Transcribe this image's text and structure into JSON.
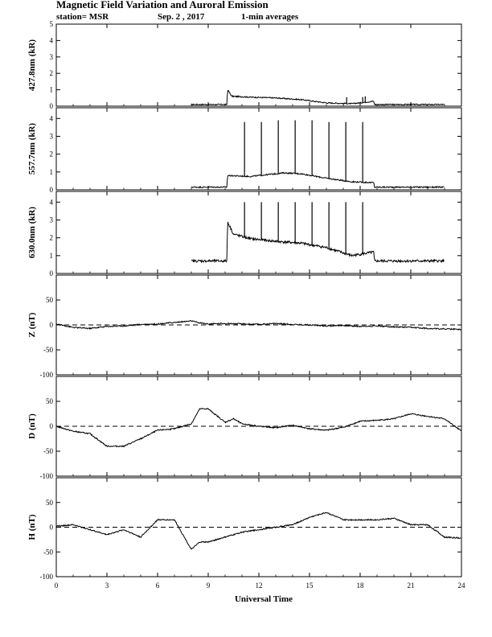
{
  "title": "Magnetic Field Variation and Auroral Emission",
  "subtitle": {
    "station": "station= MSR",
    "date": "Sep. 2  , 2017",
    "averaging": "1-min averages"
  },
  "colors": {
    "line": "#000000",
    "background": "#ffffff"
  },
  "chart_data": [
    {
      "id": "e4278",
      "type": "line",
      "ylabel": "427.8nm (kR)",
      "ylim": [
        0,
        5
      ],
      "yticks": [
        0,
        1,
        2,
        3,
        4,
        5
      ],
      "xlim": [
        0,
        24
      ],
      "valid_range": [
        8.0,
        23.0
      ],
      "gap_range": [
        18.8,
        23.0
      ],
      "base_level": 0.1,
      "knots": [
        [
          8.0,
          0.1
        ],
        [
          10.1,
          0.1
        ],
        [
          10.15,
          1.0
        ],
        [
          10.4,
          0.6
        ],
        [
          11.5,
          0.55
        ],
        [
          13.0,
          0.5
        ],
        [
          14.5,
          0.4
        ],
        [
          16.0,
          0.2
        ],
        [
          17.5,
          0.15
        ],
        [
          18.8,
          0.3
        ],
        [
          18.85,
          0.1
        ],
        [
          23.0,
          0.1
        ]
      ],
      "spikes": [
        [
          17.2,
          0.55
        ],
        [
          18.15,
          0.55
        ],
        [
          18.3,
          0.6
        ]
      ],
      "zero_line": false
    },
    {
      "id": "e5577",
      "type": "line",
      "ylabel": "557.7nm (kR)",
      "ylim": [
        0,
        4.6
      ],
      "yticks": [
        0,
        1,
        2,
        3,
        4
      ],
      "xlim": [
        0,
        24
      ],
      "valid_range": [
        8.0,
        23.0
      ],
      "knots": [
        [
          8.0,
          0.15
        ],
        [
          10.1,
          0.15
        ],
        [
          10.15,
          0.8
        ],
        [
          11.5,
          0.75
        ],
        [
          13.5,
          0.95
        ],
        [
          14.5,
          0.9
        ],
        [
          16.0,
          0.65
        ],
        [
          17.5,
          0.45
        ],
        [
          18.8,
          0.4
        ],
        [
          18.85,
          0.15
        ],
        [
          23.0,
          0.15
        ]
      ],
      "spikes": [
        [
          11.15,
          3.8
        ],
        [
          12.15,
          3.8
        ],
        [
          13.15,
          3.9
        ],
        [
          14.15,
          3.9
        ],
        [
          15.15,
          3.9
        ],
        [
          16.15,
          3.8
        ],
        [
          17.15,
          3.8
        ],
        [
          18.15,
          3.8
        ]
      ],
      "zero_line": false
    },
    {
      "id": "e6300",
      "type": "line",
      "ylabel": "630.0nm (kR)",
      "ylim": [
        0,
        4.6
      ],
      "yticks": [
        0,
        1,
        2,
        3,
        4
      ],
      "xlim": [
        0,
        24
      ],
      "valid_range": [
        8.0,
        23.0
      ],
      "knots": [
        [
          8.0,
          0.7
        ],
        [
          10.1,
          0.7
        ],
        [
          10.15,
          2.9
        ],
        [
          10.5,
          2.2
        ],
        [
          11.5,
          1.95
        ],
        [
          13.0,
          1.8
        ],
        [
          14.5,
          1.7
        ],
        [
          16.0,
          1.45
        ],
        [
          17.5,
          1.0
        ],
        [
          18.8,
          1.2
        ],
        [
          18.85,
          0.7
        ],
        [
          23.0,
          0.7
        ]
      ],
      "spikes": [
        [
          11.15,
          4.0
        ],
        [
          12.15,
          4.0
        ],
        [
          13.15,
          4.0
        ],
        [
          14.15,
          4.0
        ],
        [
          15.15,
          4.0
        ],
        [
          16.15,
          4.0
        ],
        [
          17.15,
          4.0
        ],
        [
          18.15,
          4.0
        ]
      ],
      "zero_line": false
    },
    {
      "id": "z",
      "type": "line",
      "ylabel": "Z (nT)",
      "ylim": [
        -100,
        100
      ],
      "yticks": [
        -100,
        -50,
        0,
        50
      ],
      "xlim": [
        0,
        24
      ],
      "valid_range": [
        0,
        24
      ],
      "knots": [
        [
          0,
          2
        ],
        [
          1,
          -5
        ],
        [
          2,
          -7
        ],
        [
          3,
          -3
        ],
        [
          4,
          -2
        ],
        [
          5,
          1
        ],
        [
          6,
          2
        ],
        [
          7,
          5
        ],
        [
          8,
          8
        ],
        [
          8.5,
          4
        ],
        [
          9,
          2
        ],
        [
          10,
          3
        ],
        [
          11,
          2
        ],
        [
          12,
          1
        ],
        [
          13,
          3
        ],
        [
          14,
          1
        ],
        [
          15,
          0
        ],
        [
          16,
          -2
        ],
        [
          17,
          -1
        ],
        [
          18,
          -3
        ],
        [
          19,
          -2
        ],
        [
          20,
          -4
        ],
        [
          21,
          -5
        ],
        [
          22,
          -7
        ],
        [
          23,
          -8
        ],
        [
          24,
          -9
        ]
      ],
      "spikes": [],
      "zero_line": true
    },
    {
      "id": "d",
      "type": "line",
      "ylabel": "D (nT)",
      "ylim": [
        -100,
        100
      ],
      "yticks": [
        -100,
        -50,
        0,
        50
      ],
      "xlim": [
        0,
        24
      ],
      "valid_range": [
        0,
        24
      ],
      "knots": [
        [
          0,
          0
        ],
        [
          1,
          -10
        ],
        [
          2,
          -15
        ],
        [
          3,
          -40
        ],
        [
          4,
          -40
        ],
        [
          5,
          -25
        ],
        [
          6,
          -8
        ],
        [
          7,
          -5
        ],
        [
          8,
          5
        ],
        [
          8.5,
          35
        ],
        [
          9,
          35
        ],
        [
          10,
          8
        ],
        [
          10.5,
          15
        ],
        [
          11,
          5
        ],
        [
          12,
          0
        ],
        [
          13,
          -3
        ],
        [
          14,
          2
        ],
        [
          15,
          -5
        ],
        [
          16,
          -8
        ],
        [
          17,
          -2
        ],
        [
          18,
          10
        ],
        [
          19,
          12
        ],
        [
          20,
          15
        ],
        [
          21,
          25
        ],
        [
          22,
          20
        ],
        [
          23,
          15
        ],
        [
          24,
          -10
        ]
      ],
      "spikes": [],
      "zero_line": true
    },
    {
      "id": "h",
      "type": "line",
      "ylabel": "H (nT)",
      "ylim": [
        -100,
        100
      ],
      "yticks": [
        -100,
        -50,
        0,
        50
      ],
      "xlim": [
        0,
        24
      ],
      "valid_range": [
        0,
        24
      ],
      "knots": [
        [
          0,
          2
        ],
        [
          1,
          5
        ],
        [
          2,
          -5
        ],
        [
          3,
          -15
        ],
        [
          4,
          -5
        ],
        [
          5,
          -20
        ],
        [
          6,
          15
        ],
        [
          7,
          15
        ],
        [
          8,
          -45
        ],
        [
          8.5,
          -30
        ],
        [
          9,
          -30
        ],
        [
          10,
          -20
        ],
        [
          11,
          -10
        ],
        [
          12,
          -5
        ],
        [
          13,
          0
        ],
        [
          14,
          5
        ],
        [
          15,
          20
        ],
        [
          15.5,
          25
        ],
        [
          16,
          30
        ],
        [
          17,
          15
        ],
        [
          18,
          15
        ],
        [
          19,
          15
        ],
        [
          20,
          18
        ],
        [
          21,
          5
        ],
        [
          22,
          5
        ],
        [
          23,
          -20
        ],
        [
          24,
          -22
        ]
      ],
      "spikes": [],
      "zero_line": true
    }
  ],
  "x_axis": {
    "label": "Universal Time",
    "ticks": [
      0,
      3,
      6,
      9,
      12,
      15,
      18,
      21,
      24
    ],
    "lim": [
      0,
      24
    ]
  }
}
